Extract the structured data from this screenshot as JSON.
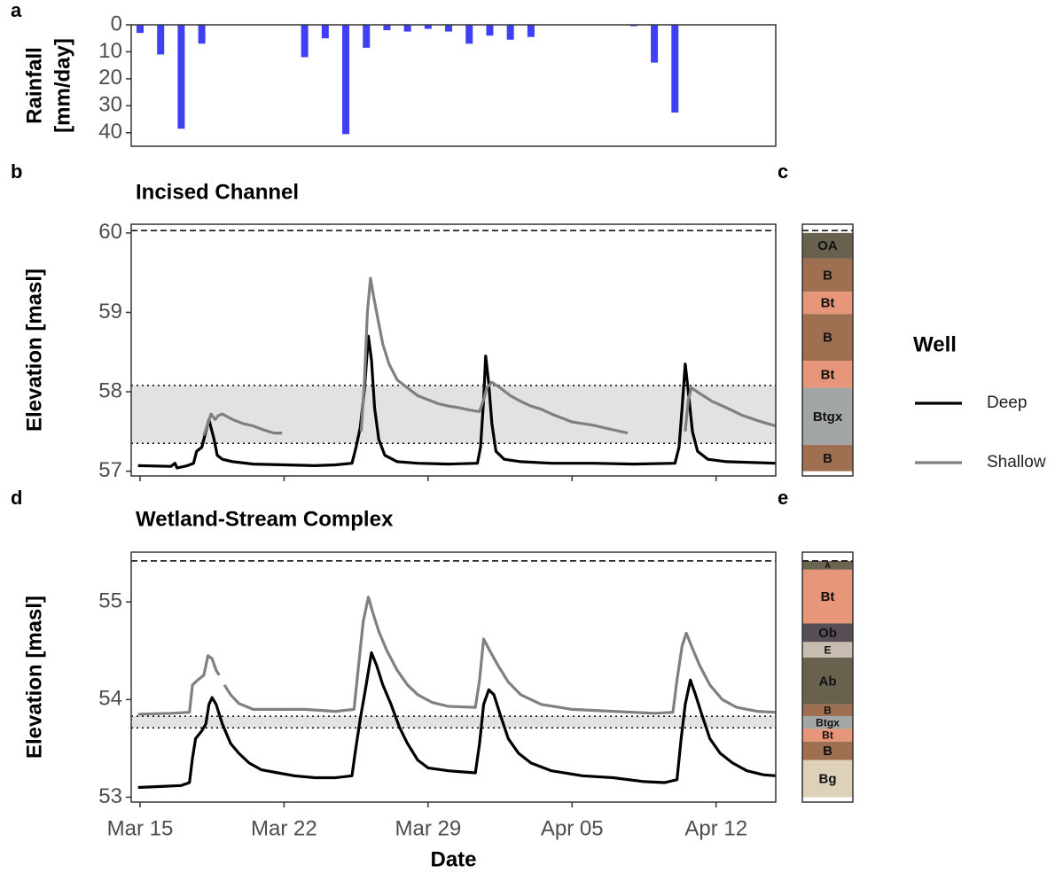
{
  "chart_data": [
    {
      "type": "bar",
      "panel_label": "a",
      "ylabel": [
        "Rainfall",
        "[mm/day]"
      ],
      "color": "#3f3ff5",
      "x": [
        0,
        1,
        2,
        3,
        8,
        9,
        10,
        11,
        12,
        13,
        14,
        15,
        16,
        17,
        18,
        19,
        24,
        25,
        26
      ],
      "values": [
        3,
        11,
        38.5,
        7,
        12,
        5,
        40.5,
        8.5,
        2,
        2.5,
        1.5,
        2.5,
        7,
        4,
        5.5,
        4.5,
        0.5,
        14,
        32.5
      ],
      "xlim": [
        -0.43,
        30.9
      ],
      "ylim": [
        0,
        45
      ],
      "y_reversed": true,
      "yticks": [
        0,
        10,
        20,
        30,
        40
      ]
    },
    {
      "type": "line",
      "panel_label": "b",
      "profile_label": "c",
      "title": "Incised Channel",
      "ylabel": "Elevation [masl]",
      "xlim": [
        -0.43,
        30.9
      ],
      "ylim": [
        56.94,
        60.11
      ],
      "yticks": [
        57,
        58,
        59,
        60
      ],
      "xticks": [
        0,
        7,
        14,
        21,
        28
      ],
      "ref_line": 60.03,
      "shade": {
        "from": 57.35,
        "to": 58.08,
        "color": "#e1e2e1"
      },
      "legend_title": "Well",
      "series": [
        {
          "name": "Deep",
          "color": "#000000",
          "x": [
            -0.1,
            1.5,
            1.7,
            1.8,
            2.3,
            2.6,
            2.75,
            3.0,
            3.2,
            3.35,
            3.45,
            3.6,
            3.75,
            4.0,
            4.5,
            5.5,
            7,
            8.5,
            9.5,
            10.3,
            10.5,
            10.7,
            10.9,
            11.1,
            11.25,
            11.4,
            11.6,
            11.9,
            12.5,
            13.5,
            15,
            16.4,
            16.55,
            16.7,
            16.8,
            16.95,
            17.1,
            17.3,
            17.7,
            18.5,
            20,
            22,
            24,
            26.0,
            26.2,
            26.35,
            26.5,
            26.65,
            26.85,
            27.1,
            27.6,
            28.5,
            30.9
          ],
          "values": [
            57.07,
            57.06,
            57.1,
            57.04,
            57.07,
            57.1,
            57.25,
            57.3,
            57.5,
            57.65,
            57.55,
            57.4,
            57.2,
            57.15,
            57.12,
            57.09,
            57.08,
            57.07,
            57.08,
            57.1,
            57.3,
            57.55,
            58.0,
            58.7,
            58.4,
            57.8,
            57.4,
            57.2,
            57.12,
            57.1,
            57.09,
            57.1,
            57.3,
            57.9,
            58.45,
            58.1,
            57.6,
            57.25,
            57.15,
            57.12,
            57.1,
            57.1,
            57.09,
            57.1,
            57.3,
            57.8,
            58.35,
            58.0,
            57.5,
            57.25,
            57.15,
            57.12,
            57.1
          ]
        },
        {
          "name": "Shallow",
          "color": "#808080",
          "x": [
            3.1,
            3.3,
            3.45,
            3.65,
            3.8,
            4.0,
            4.5,
            5.0,
            5.5,
            6.0,
            6.5,
            6.9,
            8.0,
            10.75,
            10.9,
            11.05,
            11.2,
            11.35,
            11.5,
            11.8,
            12.1,
            12.5,
            13.0,
            13.5,
            14.0,
            14.5,
            15.0,
            15.5,
            16.0,
            16.5,
            16.7,
            16.85,
            17.1,
            17.5,
            18.0,
            18.5,
            19.0,
            19.5,
            20.0,
            20.5,
            21.0,
            22,
            23,
            23.7,
            25.0,
            26.5,
            26.65,
            26.8,
            27.2,
            27.8,
            28.5,
            29.3,
            30.1,
            30.9
          ],
          "values": [
            57.45,
            57.6,
            57.72,
            57.65,
            57.7,
            57.72,
            57.65,
            57.6,
            57.57,
            57.52,
            57.48,
            57.48,
            null,
            57.5,
            58.1,
            59.0,
            59.43,
            59.2,
            59.0,
            58.6,
            58.35,
            58.15,
            58.05,
            57.95,
            57.9,
            57.85,
            57.82,
            57.8,
            57.77,
            57.75,
            57.9,
            58.05,
            58.12,
            58.05,
            57.95,
            57.88,
            57.82,
            57.78,
            57.72,
            57.67,
            57.62,
            57.58,
            57.52,
            57.48,
            null,
            57.5,
            57.9,
            58.05,
            57.98,
            57.88,
            57.8,
            57.7,
            57.63,
            57.57
          ]
        }
      ],
      "profile": [
        {
          "label": "OA",
          "color": "#67614e",
          "top": 60.0,
          "bottom": 59.68
        },
        {
          "label": "B",
          "color": "#9e7051",
          "top": 59.68,
          "bottom": 59.26
        },
        {
          "label": "Bt",
          "color": "#e8967a",
          "top": 59.26,
          "bottom": 58.98
        },
        {
          "label": "B",
          "color": "#9e7051",
          "top": 58.98,
          "bottom": 58.39
        },
        {
          "label": "Bt",
          "color": "#e8967a",
          "top": 58.39,
          "bottom": 58.05
        },
        {
          "label": "Btgx",
          "color": "#a3a6a6",
          "top": 58.05,
          "bottom": 57.33
        },
        {
          "label": "B",
          "color": "#9e7051",
          "top": 57.33,
          "bottom": 57.0
        }
      ]
    },
    {
      "type": "line",
      "panel_label": "d",
      "profile_label": "e",
      "title": "Wetland-Stream Complex",
      "ylabel": "Elevation [masl]",
      "xlabel": "Date",
      "xlim": [
        -0.43,
        30.9
      ],
      "ylim": [
        52.95,
        55.51
      ],
      "yticks": [
        53,
        54,
        55
      ],
      "xticks": [
        {
          "value": 0,
          "label": "Mar 15"
        },
        {
          "value": 7,
          "label": "Mar 22"
        },
        {
          "value": 14,
          "label": "Mar 29"
        },
        {
          "value": 21,
          "label": "Apr 05"
        },
        {
          "value": 28,
          "label": "Apr 12"
        }
      ],
      "ref_line": 55.42,
      "shade": {
        "from": 53.71,
        "to": 53.83,
        "color": "#e1e2e1"
      },
      "series": [
        {
          "name": "Deep",
          "color": "#000000",
          "x": [
            -0.1,
            1,
            2,
            2.4,
            2.55,
            2.7,
            3.0,
            3.2,
            3.35,
            3.5,
            3.7,
            4.0,
            4.4,
            4.8,
            5.3,
            5.9,
            6.7,
            7.5,
            8.5,
            9.5,
            10.3,
            10.45,
            10.7,
            10.95,
            11.25,
            11.5,
            11.8,
            12.2,
            12.6,
            13.0,
            13.5,
            14.0,
            15.0,
            16.3,
            16.5,
            16.7,
            16.95,
            17.2,
            17.5,
            17.9,
            18.4,
            19,
            20,
            21.5,
            23,
            24.5,
            25.5,
            26.1,
            26.3,
            26.5,
            26.75,
            27.0,
            27.3,
            27.7,
            28.2,
            28.8,
            29.5,
            30.3,
            30.9
          ],
          "values": [
            53.1,
            53.11,
            53.12,
            53.15,
            53.4,
            53.6,
            53.68,
            53.75,
            53.95,
            54.02,
            53.95,
            53.75,
            53.55,
            53.45,
            53.35,
            53.28,
            53.25,
            53.22,
            53.2,
            53.2,
            53.22,
            53.45,
            53.8,
            54.1,
            54.48,
            54.35,
            54.15,
            53.95,
            53.72,
            53.55,
            53.38,
            53.3,
            53.27,
            53.25,
            53.55,
            53.95,
            54.1,
            54.05,
            53.85,
            53.6,
            53.45,
            53.35,
            53.27,
            53.22,
            53.2,
            53.16,
            53.15,
            53.18,
            53.6,
            53.95,
            54.2,
            54.05,
            53.85,
            53.6,
            53.45,
            53.35,
            53.27,
            53.23,
            53.22
          ]
        },
        {
          "name": "Shallow",
          "color": "#808080",
          "x": [
            -0.1,
            1.5,
            2.4,
            2.55,
            2.8,
            3.1,
            3.3,
            3.5,
            3.7,
            3.85,
            3.95,
            4.1,
            4.4,
            4.8,
            5.5,
            6.5,
            8,
            9.5,
            10.4,
            10.6,
            10.85,
            11.1,
            11.3,
            11.6,
            12.0,
            12.5,
            13.0,
            13.5,
            14.2,
            15,
            16.3,
            16.5,
            16.7,
            17.0,
            17.4,
            17.9,
            18.5,
            19.5,
            21,
            23,
            25,
            25.9,
            26.1,
            26.35,
            26.55,
            26.8,
            27.2,
            27.7,
            28.3,
            29,
            30,
            30.9
          ],
          "values": [
            53.85,
            53.86,
            53.87,
            54.15,
            54.2,
            54.25,
            54.45,
            54.42,
            54.3,
            54.25,
            null,
            54.15,
            54.05,
            53.96,
            53.9,
            53.9,
            53.9,
            53.88,
            53.9,
            54.3,
            54.8,
            55.05,
            54.9,
            54.7,
            54.5,
            54.3,
            54.15,
            54.05,
            53.97,
            53.93,
            53.92,
            54.2,
            54.62,
            54.5,
            54.35,
            54.18,
            54.05,
            53.95,
            53.9,
            53.88,
            53.86,
            53.87,
            54.2,
            54.55,
            54.68,
            54.55,
            54.35,
            54.15,
            54.0,
            53.92,
            53.88,
            53.87
          ]
        }
      ],
      "profile": [
        {
          "label": "A",
          "color": "#6a6451",
          "top": 55.42,
          "bottom": 55.33
        },
        {
          "label": "Bt",
          "color": "#e8967a",
          "top": 55.33,
          "bottom": 54.78
        },
        {
          "label": "Ob",
          "color": "#574d54",
          "top": 54.78,
          "bottom": 54.59
        },
        {
          "label": "E",
          "color": "#c8bcb0",
          "top": 54.59,
          "bottom": 54.43
        },
        {
          "label": "Ab",
          "color": "#67614e",
          "top": 54.43,
          "bottom": 53.95
        },
        {
          "label": "B",
          "color": "#9e7051",
          "top": 53.95,
          "bottom": 53.83
        },
        {
          "label": "Btgx",
          "color": "#a3a6a6",
          "top": 53.83,
          "bottom": 53.7
        },
        {
          "label": "Bt",
          "color": "#e8967a",
          "top": 53.7,
          "bottom": 53.57
        },
        {
          "label": "B",
          "color": "#9e7051",
          "top": 53.57,
          "bottom": 53.38
        },
        {
          "label": "Bg",
          "color": "#ddd2b9",
          "top": 53.38,
          "bottom": 53.0
        }
      ]
    }
  ]
}
